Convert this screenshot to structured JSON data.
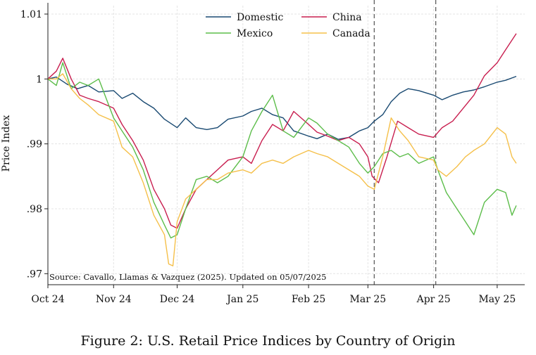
{
  "figure_caption": "Figure 2: U.S. Retail Price Indices by Country of Origin",
  "colors": {
    "Domestic": "#1a4a72",
    "China": "#c81e4f",
    "Mexico": "#5cbd4a",
    "Canada": "#f5c04a",
    "grid": "#e4e4e4",
    "vline": "#666666"
  },
  "chart_data": {
    "type": "line",
    "title": "",
    "xlabel": "",
    "ylabel": "Price Index",
    "source_note": "Source: Cavallo, Llamas & Vazquez (2025). Updated on 05/07/2025",
    "xlim": [
      "2024-10-01",
      "2025-05-14"
    ],
    "ylim": [
      0.97,
      1.01
    ],
    "yticks": [
      0.97,
      0.98,
      0.99,
      1,
      1.01
    ],
    "ytick_labels": [
      ".97",
      ".98",
      ".99",
      "1",
      "1.01"
    ],
    "xticks": [
      "2024-10-01",
      "2024-11-01",
      "2024-12-01",
      "2025-01-01",
      "2025-02-01",
      "2025-03-01",
      "2025-04-01",
      "2025-05-01"
    ],
    "xtick_labels": [
      "Oct 24",
      "Nov 24",
      "Dec 24",
      "Jan 25",
      "Feb 25",
      "Mar 25",
      "Apr 25",
      "May 25"
    ],
    "vlines": [
      "2025-03-04",
      "2025-04-02"
    ],
    "grid": true,
    "legend": "top, two columns",
    "series": [
      {
        "name": "Domestic",
        "x": [
          "2024-10-01",
          "2024-10-05",
          "2024-10-10",
          "2024-10-15",
          "2024-10-20",
          "2024-10-25",
          "2024-11-01",
          "2024-11-05",
          "2024-11-10",
          "2024-11-15",
          "2024-11-20",
          "2024-11-25",
          "2024-12-01",
          "2024-12-05",
          "2024-12-10",
          "2024-12-15",
          "2024-12-20",
          "2024-12-25",
          "2025-01-01",
          "2025-01-05",
          "2025-01-10",
          "2025-01-15",
          "2025-01-20",
          "2025-01-25",
          "2025-02-01",
          "2025-02-05",
          "2025-02-10",
          "2025-02-15",
          "2025-02-20",
          "2025-02-25",
          "2025-03-01",
          "2025-03-04",
          "2025-03-08",
          "2025-03-12",
          "2025-03-16",
          "2025-03-20",
          "2025-03-25",
          "2025-04-01",
          "2025-04-05",
          "2025-04-10",
          "2025-04-15",
          "2025-04-20",
          "2025-04-25",
          "2025-05-01",
          "2025-05-05",
          "2025-05-10"
        ],
        "y": [
          1.0,
          1.0003,
          0.9992,
          0.9985,
          0.999,
          0.998,
          0.9982,
          0.997,
          0.9978,
          0.9965,
          0.9955,
          0.9938,
          0.9925,
          0.994,
          0.9925,
          0.9922,
          0.9925,
          0.9938,
          0.9943,
          0.995,
          0.9955,
          0.9945,
          0.994,
          0.992,
          0.9912,
          0.9908,
          0.9915,
          0.9907,
          0.991,
          0.992,
          0.9925,
          0.9935,
          0.9945,
          0.9965,
          0.9978,
          0.9985,
          0.9982,
          0.9975,
          0.9968,
          0.9975,
          0.998,
          0.9983,
          0.9988,
          0.9995,
          0.9998,
          1.0004
        ]
      },
      {
        "name": "China",
        "x": [
          "2024-10-01",
          "2024-10-05",
          "2024-10-08",
          "2024-10-12",
          "2024-10-16",
          "2024-10-20",
          "2024-10-25",
          "2024-11-01",
          "2024-11-05",
          "2024-11-10",
          "2024-11-15",
          "2024-11-20",
          "2024-11-25",
          "2024-11-28",
          "2024-12-01",
          "2024-12-05",
          "2024-12-10",
          "2024-12-15",
          "2024-12-20",
          "2024-12-25",
          "2025-01-01",
          "2025-01-05",
          "2025-01-10",
          "2025-01-15",
          "2025-01-20",
          "2025-01-25",
          "2025-02-01",
          "2025-02-05",
          "2025-02-10",
          "2025-02-15",
          "2025-02-20",
          "2025-02-25",
          "2025-03-01",
          "2025-03-03",
          "2025-03-06",
          "2025-03-10",
          "2025-03-15",
          "2025-03-20",
          "2025-03-25",
          "2025-04-01",
          "2025-04-05",
          "2025-04-10",
          "2025-04-15",
          "2025-04-20",
          "2025-04-25",
          "2025-05-01",
          "2025-05-05",
          "2025-05-10"
        ],
        "y": [
          1.0,
          1.0012,
          1.0032,
          1.0,
          0.9975,
          0.997,
          0.9965,
          0.9955,
          0.993,
          0.9905,
          0.9875,
          0.983,
          0.98,
          0.9775,
          0.977,
          0.98,
          0.983,
          0.9845,
          0.986,
          0.9875,
          0.988,
          0.987,
          0.9905,
          0.993,
          0.992,
          0.995,
          0.993,
          0.9918,
          0.9912,
          0.9905,
          0.991,
          0.99,
          0.988,
          0.985,
          0.984,
          0.988,
          0.9935,
          0.9925,
          0.9915,
          0.991,
          0.9925,
          0.9935,
          0.9955,
          0.9975,
          1.0005,
          1.0025,
          1.0045,
          1.007
        ]
      },
      {
        "name": "Mexico",
        "x": [
          "2024-10-01",
          "2024-10-05",
          "2024-10-08",
          "2024-10-12",
          "2024-10-16",
          "2024-10-20",
          "2024-10-25",
          "2024-11-01",
          "2024-11-05",
          "2024-11-10",
          "2024-11-15",
          "2024-11-20",
          "2024-11-25",
          "2024-11-28",
          "2024-12-01",
          "2024-12-05",
          "2024-12-10",
          "2024-12-15",
          "2024-12-20",
          "2024-12-25",
          "2025-01-01",
          "2025-01-05",
          "2025-01-10",
          "2025-01-15",
          "2025-01-20",
          "2025-01-25",
          "2025-02-01",
          "2025-02-05",
          "2025-02-10",
          "2025-02-15",
          "2025-02-20",
          "2025-02-25",
          "2025-03-01",
          "2025-03-04",
          "2025-03-08",
          "2025-03-12",
          "2025-03-16",
          "2025-03-20",
          "2025-03-25",
          "2025-04-01",
          "2025-04-03",
          "2025-04-07",
          "2025-04-12",
          "2025-04-16",
          "2025-04-20",
          "2025-04-25",
          "2025-05-01",
          "2025-05-05",
          "2025-05-08",
          "2025-05-10"
        ],
        "y": [
          1.0,
          0.999,
          1.0025,
          0.9985,
          0.9995,
          0.999,
          1.0,
          0.994,
          0.992,
          0.9895,
          0.986,
          0.981,
          0.9775,
          0.9755,
          0.976,
          0.98,
          0.9845,
          0.985,
          0.984,
          0.985,
          0.988,
          0.992,
          0.995,
          0.9975,
          0.992,
          0.991,
          0.994,
          0.9932,
          0.9915,
          0.9905,
          0.9895,
          0.987,
          0.9855,
          0.9865,
          0.9885,
          0.989,
          0.988,
          0.9885,
          0.987,
          0.988,
          0.986,
          0.9825,
          0.98,
          0.978,
          0.976,
          0.981,
          0.983,
          0.9825,
          0.979,
          0.9805
        ]
      },
      {
        "name": "Canada",
        "x": [
          "2024-10-01",
          "2024-10-05",
          "2024-10-08",
          "2024-10-12",
          "2024-10-16",
          "2024-10-20",
          "2024-10-25",
          "2024-11-01",
          "2024-11-05",
          "2024-11-10",
          "2024-11-15",
          "2024-11-20",
          "2024-11-25",
          "2024-11-27",
          "2024-11-29",
          "2024-12-01",
          "2024-12-05",
          "2024-12-10",
          "2024-12-15",
          "2024-12-20",
          "2024-12-25",
          "2025-01-01",
          "2025-01-05",
          "2025-01-10",
          "2025-01-15",
          "2025-01-20",
          "2025-01-25",
          "2025-02-01",
          "2025-02-05",
          "2025-02-10",
          "2025-02-15",
          "2025-02-20",
          "2025-02-25",
          "2025-03-01",
          "2025-03-04",
          "2025-03-08",
          "2025-03-12",
          "2025-03-16",
          "2025-03-20",
          "2025-03-25",
          "2025-04-01",
          "2025-04-03",
          "2025-04-07",
          "2025-04-12",
          "2025-04-16",
          "2025-04-20",
          "2025-04-25",
          "2025-05-01",
          "2025-05-05",
          "2025-05-08",
          "2025-05-10"
        ],
        "y": [
          1.0,
          1.0,
          1.0008,
          0.9985,
          0.997,
          0.996,
          0.9945,
          0.9935,
          0.9895,
          0.988,
          0.984,
          0.979,
          0.976,
          0.9715,
          0.9712,
          0.978,
          0.9815,
          0.983,
          0.9845,
          0.9845,
          0.9855,
          0.986,
          0.9855,
          0.987,
          0.9875,
          0.987,
          0.988,
          0.989,
          0.9885,
          0.988,
          0.987,
          0.986,
          0.985,
          0.9835,
          0.983,
          0.988,
          0.994,
          0.992,
          0.9905,
          0.988,
          0.9875,
          0.986,
          0.985,
          0.9865,
          0.988,
          0.989,
          0.99,
          0.9925,
          0.9915,
          0.988,
          0.987
        ]
      }
    ]
  }
}
